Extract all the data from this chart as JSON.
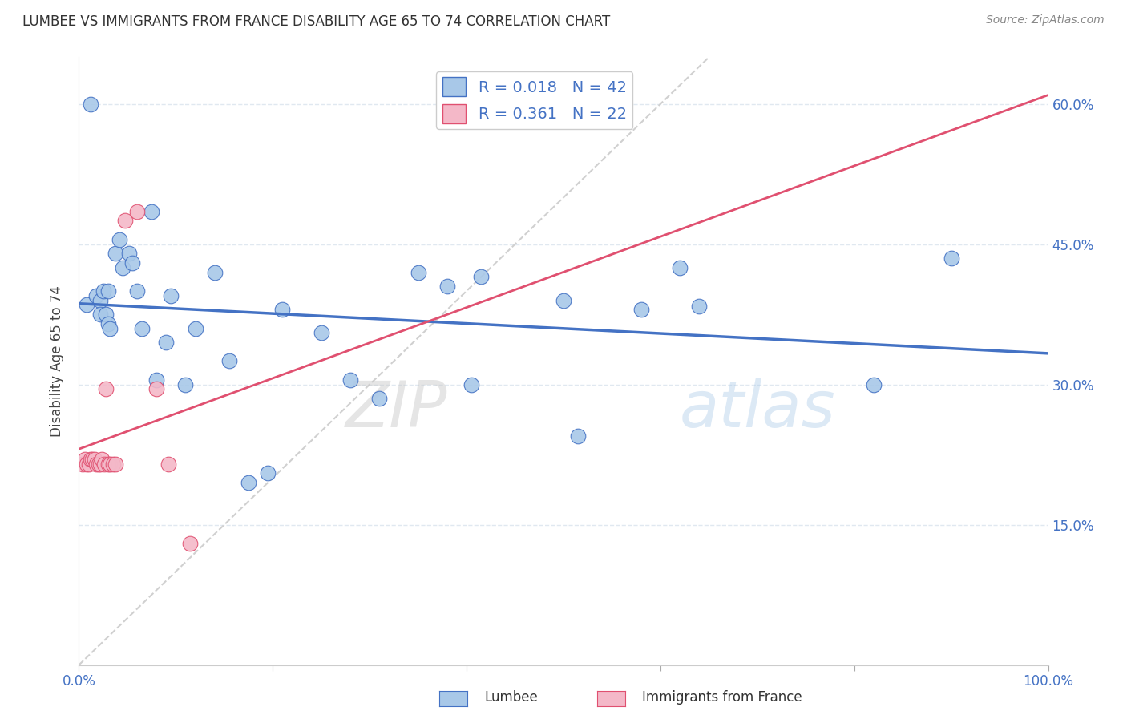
{
  "title": "LUMBEE VS IMMIGRANTS FROM FRANCE DISABILITY AGE 65 TO 74 CORRELATION CHART",
  "source": "Source: ZipAtlas.com",
  "ylabel": "Disability Age 65 to 74",
  "xlim": [
    0.0,
    1.0
  ],
  "ylim": [
    0.0,
    0.65
  ],
  "xtick_vals": [
    0.0,
    0.2,
    0.4,
    0.6,
    0.8,
    1.0
  ],
  "xtick_labels": [
    "0.0%",
    "",
    "",
    "",
    "",
    "100.0%"
  ],
  "yticks": [
    0.15,
    0.3,
    0.45,
    0.6
  ],
  "ytick_labels": [
    "15.0%",
    "30.0%",
    "45.0%",
    "60.0%"
  ],
  "legend_labels": [
    "Lumbee",
    "Immigrants from France"
  ],
  "lumbee_R": "0.018",
  "lumbee_N": "42",
  "france_R": "0.361",
  "france_N": "22",
  "lumbee_color": "#a8c8e8",
  "france_color": "#f4b8c8",
  "trendline_lumbee_color": "#4472c4",
  "trendline_france_color": "#e05070",
  "diagonal_color": "#d0d0d0",
  "watermark": "ZIPatlas",
  "lumbee_x": [
    0.008,
    0.012,
    0.018,
    0.022,
    0.022,
    0.025,
    0.028,
    0.03,
    0.03,
    0.032,
    0.038,
    0.042,
    0.045,
    0.052,
    0.055,
    0.06,
    0.065,
    0.075,
    0.08,
    0.09,
    0.095,
    0.11,
    0.12,
    0.14,
    0.155,
    0.175,
    0.195,
    0.21,
    0.25,
    0.28,
    0.31,
    0.35,
    0.38,
    0.405,
    0.415,
    0.5,
    0.515,
    0.58,
    0.62,
    0.64,
    0.82,
    0.9
  ],
  "lumbee_y": [
    0.385,
    0.6,
    0.395,
    0.39,
    0.375,
    0.4,
    0.375,
    0.365,
    0.4,
    0.36,
    0.44,
    0.455,
    0.425,
    0.44,
    0.43,
    0.4,
    0.36,
    0.485,
    0.305,
    0.345,
    0.395,
    0.3,
    0.36,
    0.42,
    0.325,
    0.195,
    0.205,
    0.38,
    0.355,
    0.305,
    0.285,
    0.42,
    0.405,
    0.3,
    0.415,
    0.39,
    0.245,
    0.38,
    0.425,
    0.384,
    0.3,
    0.435
  ],
  "france_x": [
    0.004,
    0.006,
    0.008,
    0.01,
    0.012,
    0.014,
    0.016,
    0.018,
    0.02,
    0.022,
    0.024,
    0.026,
    0.028,
    0.03,
    0.032,
    0.035,
    0.038,
    0.048,
    0.06,
    0.08,
    0.092,
    0.115
  ],
  "france_y": [
    0.215,
    0.22,
    0.215,
    0.215,
    0.22,
    0.22,
    0.22,
    0.215,
    0.215,
    0.215,
    0.22,
    0.215,
    0.295,
    0.215,
    0.215,
    0.215,
    0.215,
    0.475,
    0.485,
    0.295,
    0.215,
    0.13
  ],
  "background_color": "#ffffff",
  "grid_color": "#e0e8f0"
}
